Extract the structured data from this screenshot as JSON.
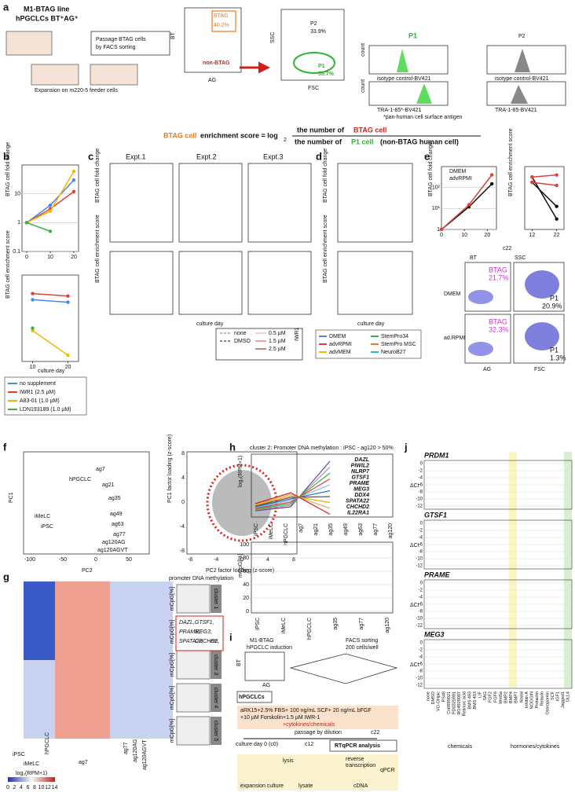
{
  "a": {
    "label": "a",
    "line": "M1-BTAG line",
    "cells": "hPGCLCs BT⁺AG⁺",
    "passage1": "Passage BTAG cells",
    "passage2": "by FACS sorting",
    "expansion": "Expansion on m220-5 feeder cells",
    "btag": "BTAG",
    "btag_pct": "40.2%",
    "non_btag": "non-BTAG",
    "bt": "BT",
    "ag": "AG",
    "ssc": "SSC",
    "fsc": "FSC",
    "p2": "P2",
    "p2_pct": "33.9%",
    "p1": "P1",
    "p1_pct": "55.7%",
    "count": "count",
    "iso": "isotype control-BV421",
    "tra_star": "TRA-1-85*-BV421",
    "tra": "TRA-1-85-BV421",
    "pan": "*pan-human cell surface antigen"
  },
  "formula": {
    "lead": "BTAG cell",
    "lead2": " enrichment score = log",
    "base": "2",
    "num": "the number of ",
    "num_hl": "BTAG cell",
    "den": "the number of ",
    "den_hl": "P1 cell",
    "den_tail": " (non-BTAG human cell)"
  },
  "b": {
    "label": "b",
    "x_label": "culture day",
    "fold_change": {
      "type": "line",
      "y_label": "BTAG cell fold change",
      "log_y": true,
      "grid": true,
      "xlim": [
        -2,
        22
      ],
      "xticks": [
        0,
        10,
        20
      ],
      "ylim": [
        0.1,
        100
      ],
      "yticks": [
        0.1,
        1,
        10
      ],
      "x": [
        0,
        10,
        20
      ],
      "series": [
        {
          "name": "no supplement",
          "color": "#4a86e8",
          "values": [
            1,
            4,
            30
          ]
        },
        {
          "name": "IWR1 (2.5 µM)",
          "color": "#e0403a",
          "values": [
            1,
            3,
            12
          ]
        },
        {
          "name": "A83-01 (1.0 µM)",
          "color": "#f5b800",
          "values": [
            1,
            2.5,
            60
          ]
        },
        {
          "name": "LDN193189 (1.0 µM)",
          "color": "#3bb04a",
          "values": [
            1,
            0.5,
            null
          ]
        }
      ]
    },
    "enrichment": {
      "type": "line",
      "y_label": "BTAG cell enrichment score",
      "log_y": false,
      "grid": true,
      "xlim": [
        7,
        23
      ],
      "xticks": [
        10,
        20
      ],
      "ylim": [
        -3,
        4
      ],
      "x": [
        10,
        20
      ],
      "series": [
        {
          "color": "#4a86e8",
          "values": [
            2,
            1.8
          ]
        },
        {
          "color": "#e0403a",
          "values": [
            2.5,
            2.3
          ]
        },
        {
          "color": "#f5b800",
          "values": [
            -0.5,
            -2.5
          ]
        },
        {
          "color": "#3bb04a",
          "values": [
            -0.3,
            null
          ]
        }
      ]
    }
  },
  "c": {
    "label": "c",
    "titles": [
      "Expt.1",
      "Expt.2",
      "Expt.3"
    ],
    "y_top": "BTAG cell fold change",
    "y_bottom": "BTAG cell enrichment score",
    "x_label": "culture day",
    "legend": [
      "none",
      "DMSO",
      "0.5 µM",
      "1.5 µM",
      "2.5 µM"
    ],
    "legend_group": "IWR1"
  },
  "d": {
    "label": "d",
    "y_top": "BTAG cell fold change",
    "y_bottom": "BTAG cell enrichment score",
    "x_label": "culture day",
    "legend": [
      {
        "name": "DMEM",
        "color": "#4a86e8"
      },
      {
        "name": "advRPMI",
        "color": "#e0403a"
      },
      {
        "name": "advMEM",
        "color": "#f5b800"
      },
      {
        "name": "StemPro34",
        "color": "#3bb04a"
      },
      {
        "name": "StemPro MSC",
        "color": "#f07a2a"
      },
      {
        "name": "NeuroB27",
        "color": "#2bb5c8"
      }
    ]
  },
  "e": {
    "label": "e",
    "c22": "c22",
    "bt": "BT",
    "ssc": "SSC",
    "ag": "AG",
    "fsc": "FSC",
    "dmem": "DMEM",
    "adrpmi": "ad.RPMI",
    "btag": "BTAG",
    "btag_pct1": "21.7%",
    "btag_pct2": "32.3%",
    "p1": "P1",
    "p1_pct1": "20.9%",
    "p1_pct2": "1.3%",
    "fold_change": {
      "type": "line",
      "y_label": "BTAG cell fold change",
      "log_y": true,
      "grid": true,
      "xlim": [
        0,
        24
      ],
      "xticks": [
        0,
        10,
        20
      ],
      "ylim": [
        1,
        1000
      ],
      "yticks": [
        1,
        {
          "value": 10,
          "label": "10¹"
        },
        {
          "value": 100,
          "label": "10²"
        }
      ],
      "x": [
        0,
        12,
        22
      ],
      "series": [
        {
          "name": "DMEM",
          "color": "#111111",
          "values": [
            1,
            12,
            150
          ]
        },
        {
          "name": "advRPMI",
          "color": "#e0403a",
          "values": [
            1,
            15,
            400
          ]
        }
      ]
    },
    "enrichment": {
      "type": "line",
      "y_label": "BTAG cell enrichment score",
      "log_y": false,
      "grid": true,
      "xlim": [
        9,
        25
      ],
      "xticks": [
        12,
        22
      ],
      "ylim": [
        -2,
        4
      ],
      "x": [
        12,
        22
      ],
      "series": [
        {
          "color": "#111111",
          "values": [
            2.5,
            0.2
          ]
        },
        {
          "color": "#111111",
          "values": [
            3,
            -1
          ]
        },
        {
          "color": "#e0403a",
          "values": [
            3,
            3.2
          ]
        },
        {
          "color": "#e0403a",
          "values": [
            2.5,
            2.2
          ]
        }
      ]
    }
  },
  "f": {
    "label": "f",
    "pc1": "PC1",
    "pc2": "PC2",
    "samples": [
      "hPGCLC",
      "ag7",
      "ag21",
      "ag35",
      "ag49",
      "ag63",
      "ag77",
      "ag120AG",
      "ag120AGVT",
      "iMeLC",
      "iPSC"
    ],
    "xticks": [
      -100,
      -50,
      0,
      50
    ],
    "load_x": "PC2 factor loading (z-score)",
    "load_y": "PC1 factor loading (z-score)",
    "load_ticks": [
      -8,
      -4,
      0,
      4,
      8
    ]
  },
  "g": {
    "label": "g",
    "methylation": "promoter DNA methylation",
    "clusters": [
      "cluster 1",
      "cluster 2",
      "cluster 3",
      "cluster 4",
      "cluster 5"
    ],
    "mcpg": "mCpG[%]",
    "genes": [
      "DAZL,",
      "GTSF1,",
      "PRAME,",
      "MEG3,",
      "SPATA22,",
      "CHCHD2,",
      "etc."
    ],
    "samples": [
      "iPSC",
      "iMeLC",
      "hPGCLC",
      "ag7",
      "ag77",
      "ag120AG",
      "ag120AGVT"
    ],
    "scale": "log₂(RPM+1)",
    "scale_ticks": [
      0,
      2,
      4,
      6,
      8,
      10,
      12,
      14
    ]
  },
  "h": {
    "label": "h",
    "title": "cluster 2: Promoter DNA methylation : iPSC - ag120 > 50%",
    "y_top": "log₂(RPM+1)",
    "y_bottom": "mCpG[%]",
    "genes": [
      {
        "name": "DAZL",
        "color": "#6a3fa0"
      },
      {
        "name": "PIWIL2",
        "color": "#9a9a9a"
      },
      {
        "name": "NLRP7",
        "color": "#3bb04a"
      },
      {
        "name": "GTSF1",
        "color": "#e0403a"
      },
      {
        "name": "PRAME",
        "color": "#8fb8e0"
      },
      {
        "name": "MEG3",
        "color": "#2a6fc0"
      },
      {
        "name": "DDX4",
        "color": "#555555"
      },
      {
        "name": "SPATA22",
        "color": "#f5a800"
      },
      {
        "name": "CHCHD2",
        "color": "#d9b070"
      },
      {
        "name": "IL22RA1",
        "color": "#d0201a"
      }
    ],
    "x_top": [
      "iPSC",
      "iMeLC",
      "hPGCLC",
      "ag7",
      "ag21",
      "ag35",
      "ag49",
      "ag63",
      "ag77",
      "ag120"
    ],
    "x_bottom": [
      "iPSC",
      "iMeLC",
      "hPGCLC",
      "ag35",
      "ag77",
      "ag120"
    ],
    "yticks_bottom": [
      0,
      20,
      40,
      60,
      80,
      100
    ]
  },
  "i": {
    "label": "i",
    "line": "M1-BTAG",
    "induction": "hPGCLC induction",
    "facs": "FACS sorting",
    "cells": "200 cells/well",
    "bt": "BT",
    "ag": "AG",
    "hpgclcs": "hPGCLCs",
    "medium1": "aRK15+2.5% FBS+ 100 ng/mL SCF+ 20 ng/mL bFGF",
    "medium2": "+10 µM Forskolin+1.5 µM IWR-1",
    "medium3": "+cytokines/chemicals",
    "day0": "culture day 0 (c0)",
    "passage": "passage by dilution",
    "c12": "c12",
    "c22": "c22",
    "rtqpcr": "RTqPCR analysis",
    "lysis": "lysis",
    "rt1": "reverse",
    "rt2": "transcription",
    "qpcr": "qPCR",
    "expansion": "expansion culture",
    "lysate": "lysate",
    "cdna": "cDNA"
  },
  "j": {
    "label": "j",
    "genes": [
      "PRDM1",
      "GTSF1",
      "PRAME",
      "MEG3"
    ],
    "dct": "ΔCt",
    "yticks": [
      0,
      -2,
      -4,
      -6,
      -8,
      -10,
      -12
    ],
    "chemicals": "chemicals",
    "hormones": "hormones/cytokines",
    "conditions": [
      "none",
      "DMSO",
      "VO-OHpic",
      "PS48",
      "CHIR99021",
      "PD0325901",
      "RO4929097",
      "Retinoic acid",
      "BMS 493",
      "BMS 453",
      "LIF",
      "SAG",
      "FGF2",
      "FGF9",
      "Wnt5a",
      "BMP2",
      "BMP4",
      "BMP7",
      "Nodal",
      "Inhibin A",
      "NOGGIN",
      "Prolactin",
      "Relaxin",
      "Osteopontin",
      "SCF",
      "IGF1",
      "Jagged1",
      "DLL4"
    ]
  }
}
